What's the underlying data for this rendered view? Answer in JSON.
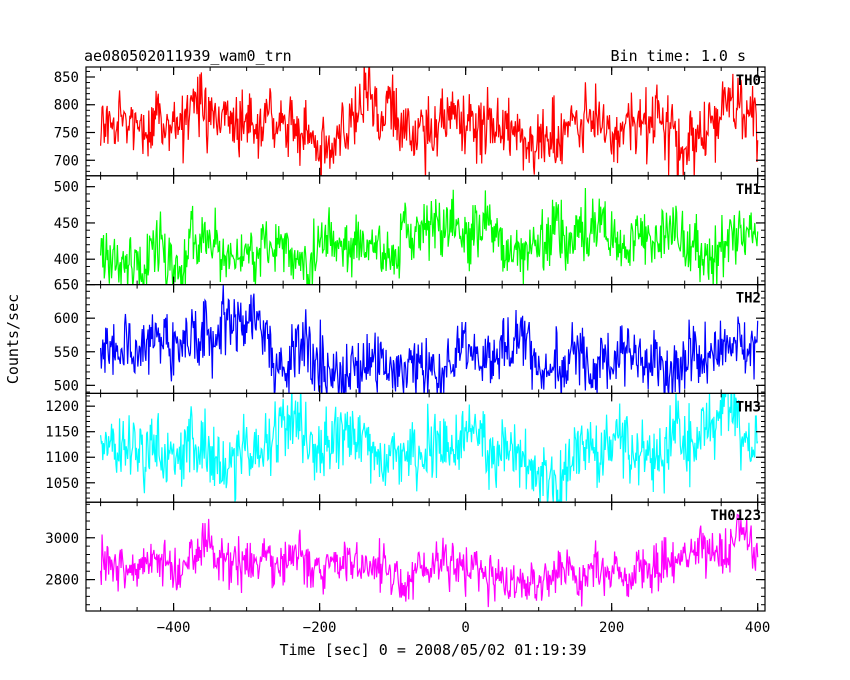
{
  "header": {
    "object_name": "ae080502011939_wam0_trn",
    "bin_time": "Bin time: 1.0 s"
  },
  "chart_data": {
    "type": "line",
    "title": "ae080502011939_wam0_trn",
    "subtitle": "Bin time: 1.0 s",
    "xlabel": "Time [sec] 0 = 2008/05/02 01:19:39",
    "ylabel": "Counts/sec",
    "xlim": [
      -520,
      410
    ],
    "x_ticks": [
      -400,
      -200,
      0,
      200,
      400
    ],
    "x_tick_labels": [
      "−400",
      "−200",
      "0",
      "200",
      "400"
    ],
    "x_data_range": [
      -500,
      400
    ],
    "bin_time_sec": 1.0,
    "grid": false,
    "series": [
      {
        "name": "TH0",
        "color": "#ff0000",
        "ylim": [
          672,
          868
        ],
        "mean": 763,
        "spread": 28,
        "y_ticks": [
          700,
          750,
          800,
          850
        ],
        "y_tick_labels": [
          "700",
          "750",
          "800",
          "850"
        ]
      },
      {
        "name": "TH1",
        "color": "#00ff00",
        "ylim": [
          365,
          515
        ],
        "mean": 418,
        "spread": 20,
        "y_ticks": [
          400,
          450,
          500
        ],
        "y_tick_labels": [
          "400",
          "450",
          "500"
        ]
      },
      {
        "name": "TH2",
        "color": "#0000ff",
        "ylim": [
          488,
          650
        ],
        "mean": 555,
        "spread": 23,
        "y_ticks": [
          500,
          550,
          600,
          650
        ],
        "y_tick_labels": [
          "500",
          "550",
          "600",
          "650"
        ]
      },
      {
        "name": "TH3",
        "color": "#00ffff",
        "ylim": [
          1012,
          1225
        ],
        "mean": 1120,
        "spread": 33,
        "y_ticks": [
          1050,
          1100,
          1150,
          1200
        ],
        "y_tick_labels": [
          "1050",
          "1100",
          "1150",
          "1200"
        ]
      },
      {
        "name": "TH0123",
        "color": "#ff00ff",
        "ylim": [
          2650,
          3170
        ],
        "mean": 2860,
        "spread": 55,
        "y_ticks": [
          2800,
          3000
        ],
        "y_tick_labels": [
          "2800",
          "3000"
        ]
      }
    ]
  }
}
